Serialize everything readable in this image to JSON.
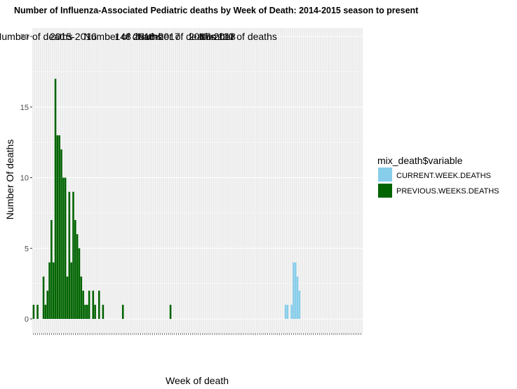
{
  "chart_data": {
    "type": "bar",
    "stacked": true,
    "title": "Number of Influenza-Associated Pediatric deaths by Week of Death: 2014-2015 season to present",
    "xlabel": "Week of death",
    "ylabel": "Number Of deaths",
    "ylim": [
      0,
      20
    ],
    "yticks": [
      0,
      5,
      10,
      15,
      20
    ],
    "grid": true,
    "legend": {
      "title": "mix_death$variable",
      "placement": "right",
      "entries": [
        "CURRENT.WEEK.DEATHS",
        "PREVIOUS.WEEKS.DEATHS"
      ]
    },
    "annotations": [
      {
        "text": "Number of deaths",
        "x": 1,
        "y": 20
      },
      {
        "text": "2015-2016",
        "x": 21,
        "y": 20
      },
      {
        "text": "148",
        "x": 46,
        "y": 20
      },
      {
        "text": "Number of deaths",
        "x": 46,
        "y": 20
      },
      {
        "text": "2016-2017",
        "x": 63,
        "y": 20
      },
      {
        "text": "Number of deaths",
        "x": 73,
        "y": 20
      },
      {
        "text": "2017-2018",
        "x": 91,
        "y": 20
      },
      {
        "text": "110",
        "x": 98,
        "y": 20
      },
      {
        "text": "Number of deaths",
        "x": 104,
        "y": 20
      }
    ],
    "series": [
      {
        "name": "CURRENT.WEEK.DEATHS",
        "color": "#87ceeb",
        "values": [
          0,
          0,
          0,
          0,
          0,
          0,
          0,
          0,
          0,
          0,
          0,
          0,
          0,
          0,
          0,
          0,
          0,
          0,
          0,
          0,
          0,
          0,
          0,
          0,
          0,
          0,
          0,
          0,
          0,
          0,
          0,
          0,
          0,
          0,
          0,
          0,
          0,
          0,
          0,
          0,
          0,
          0,
          0,
          0,
          0,
          0,
          0,
          0,
          0,
          0,
          0,
          0,
          0,
          0,
          0,
          0,
          0,
          0,
          0,
          0,
          0,
          0,
          0,
          0,
          0,
          0,
          0,
          0,
          0,
          0,
          0,
          0,
          0,
          0,
          0,
          0,
          0,
          0,
          0,
          0,
          0,
          0,
          0,
          0,
          0,
          0,
          0,
          0,
          0,
          0,
          0,
          0,
          0,
          0,
          0,
          0,
          0,
          0,
          0,
          0,
          0,
          0,
          0,
          0,
          0,
          0,
          0,
          0,
          0,
          0,
          0,
          0,
          0,
          0,
          0,
          0,
          0,
          0,
          0,
          0,
          0,
          0,
          0,
          0,
          0,
          0,
          0,
          1,
          1,
          0,
          1,
          4,
          4,
          3,
          2,
          0,
          0,
          0,
          0,
          0,
          0,
          0,
          0,
          0,
          0,
          0,
          0,
          0,
          0,
          0,
          0,
          0,
          0,
          0,
          0,
          0,
          0,
          0,
          0,
          0,
          0,
          0,
          0,
          0,
          0,
          0
        ]
      },
      {
        "name": "PREVIOUS.WEEKS.DEATHS",
        "color": "#006400",
        "values": [
          1,
          0,
          1,
          0,
          0,
          3,
          1,
          2,
          4,
          7,
          4,
          17,
          13,
          13,
          12,
          10,
          10,
          3,
          9,
          4,
          9,
          7,
          6,
          5,
          3,
          2,
          1,
          1,
          2,
          0,
          2,
          1,
          0,
          2,
          0,
          1,
          0,
          0,
          0,
          0,
          0,
          0,
          0,
          0,
          0,
          1,
          0,
          0,
          0,
          0,
          0,
          0,
          0,
          0,
          0,
          0,
          0,
          0,
          0,
          0,
          0,
          0,
          0,
          0,
          0,
          0,
          0,
          0,
          0,
          1,
          0,
          0,
          0,
          0,
          0,
          0,
          0,
          0,
          0,
          0,
          0,
          0,
          0,
          0,
          0,
          0,
          0,
          0,
          0,
          0,
          0,
          0,
          0,
          0,
          0,
          0,
          0,
          0,
          0,
          0,
          0,
          0,
          0,
          0,
          0,
          0,
          0,
          0,
          0,
          0,
          0,
          0,
          0,
          0,
          0,
          0,
          0,
          0,
          0,
          0,
          0,
          0,
          0,
          0,
          0,
          0,
          0,
          0,
          0,
          0,
          0,
          0,
          0,
          0,
          0,
          0,
          0,
          0,
          0,
          0,
          0,
          0,
          0,
          0,
          0,
          0,
          0,
          0,
          0,
          0,
          0,
          0,
          0,
          0,
          0,
          0,
          0,
          0,
          0,
          0,
          0,
          0,
          0,
          0,
          0,
          0
        ]
      }
    ]
  }
}
